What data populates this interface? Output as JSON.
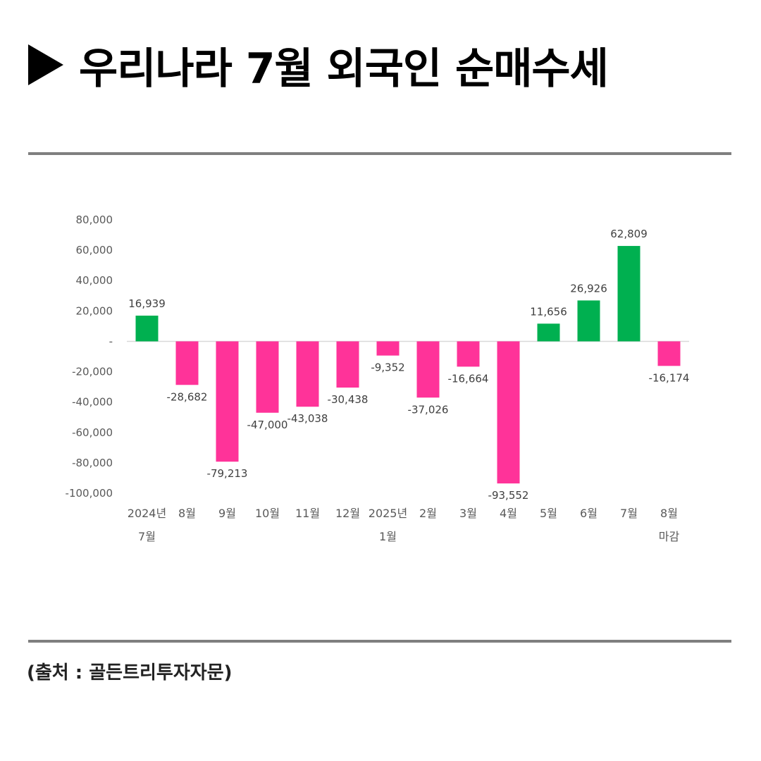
{
  "header": {
    "title": "우리나라 7월 외국인 순매수세",
    "icon": "play-triangle-icon"
  },
  "footer": {
    "source": "(출처 : 골든트리투자자문)"
  },
  "colors": {
    "positive": "#00b050",
    "negative": "#ff3399",
    "rule": "#7f7f7f"
  },
  "chart_data": {
    "type": "bar",
    "title": "",
    "xlabel": "",
    "ylabel": "",
    "ylim": [
      -100000,
      80000
    ],
    "y_ticks": [
      80000,
      60000,
      40000,
      20000,
      0,
      -20000,
      -40000,
      -60000,
      -80000,
      -100000
    ],
    "y_tick_labels": [
      "80,000",
      "60,000",
      "40,000",
      "20,000",
      "-",
      "-20,000",
      "-40,000",
      "-60,000",
      "-80,000",
      "-100,000"
    ],
    "grid": false,
    "legend": "none",
    "categories": [
      [
        "2024년",
        "7월"
      ],
      [
        "8월"
      ],
      [
        "9월"
      ],
      [
        "10월"
      ],
      [
        "11월"
      ],
      [
        "12월"
      ],
      [
        "2025년",
        "1월"
      ],
      [
        "2월"
      ],
      [
        "3월"
      ],
      [
        "4월"
      ],
      [
        "5월"
      ],
      [
        "6월"
      ],
      [
        "7월"
      ],
      [
        "8월",
        "마감"
      ]
    ],
    "values": [
      16939,
      -28682,
      -79213,
      -47000,
      -43038,
      -30438,
      -9352,
      -37026,
      -16664,
      -93552,
      11656,
      26926,
      62809,
      -16174
    ],
    "value_labels": [
      "16,939",
      "-28,682",
      "-79,213",
      "-47,000",
      "-43,038",
      "-30,438",
      "-9,352",
      "-37,026",
      "-16,664",
      "-93,552",
      "11,656",
      "26,926",
      "62,809",
      "-16,174"
    ]
  }
}
